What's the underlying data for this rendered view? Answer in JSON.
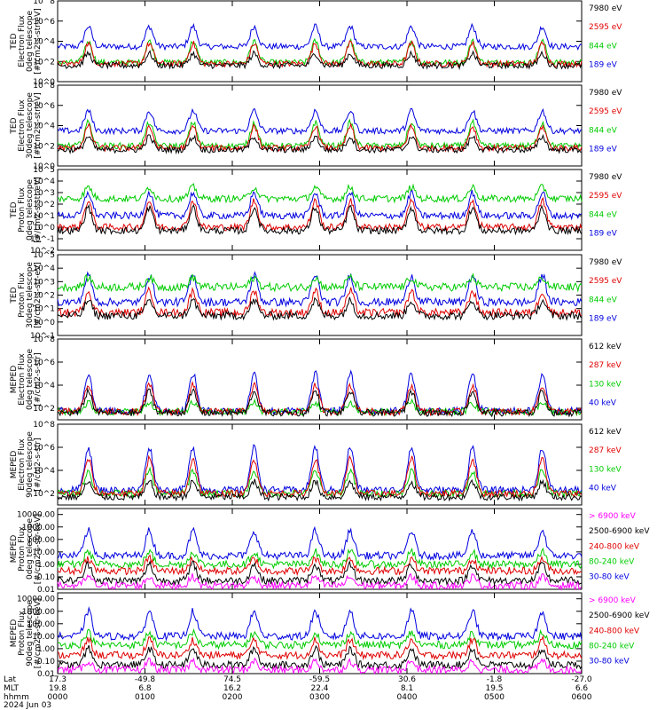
{
  "chart_data": [
    {
      "type": "line",
      "ylabel": [
        "TED",
        "Electron Flux",
        "0deg telescope",
        "[#/cm2-s-str-eV]"
      ],
      "yscale": "log",
      "ylim": [
        1,
        100000000
      ],
      "yticks": [
        {
          "v": 1,
          "label": "10^0"
        },
        {
          "v": 100,
          "label": "10^2"
        },
        {
          "v": 10000,
          "label": "10^4"
        },
        {
          "v": 1000000,
          "label": "10^6"
        },
        {
          "v": 100000000,
          "label": "10^8"
        }
      ],
      "series": [
        {
          "name": "7980 eV",
          "color": "#000000",
          "base": 40,
          "peak": 600
        },
        {
          "name": "2595 eV",
          "color": "#e00000",
          "base": 60,
          "peak": 6000
        },
        {
          "name": "844 eV",
          "color": "#00cc00",
          "base": 80,
          "peak": 10000
        },
        {
          "name": "189 eV",
          "color": "#0000e0",
          "base": 3000,
          "peak": 300000
        }
      ]
    },
    {
      "type": "line",
      "ylabel": [
        "TED",
        "Electron Flux",
        "30deg telescope",
        "[#/cm2-s-str-eV]"
      ],
      "yscale": "log",
      "ylim": [
        1,
        100000000
      ],
      "yticks": [
        {
          "v": 1,
          "label": "10^0"
        },
        {
          "v": 100,
          "label": "10^2"
        },
        {
          "v": 10000,
          "label": "10^4"
        },
        {
          "v": 1000000,
          "label": "10^6"
        },
        {
          "v": 100000000,
          "label": "10^8"
        }
      ],
      "series": [
        {
          "name": "7980 eV",
          "color": "#000000",
          "base": 40,
          "peak": 800
        },
        {
          "name": "2595 eV",
          "color": "#e00000",
          "base": 60,
          "peak": 8000
        },
        {
          "name": "844 eV",
          "color": "#00cc00",
          "base": 100,
          "peak": 20000
        },
        {
          "name": "189 eV",
          "color": "#0000e0",
          "base": 3000,
          "peak": 300000
        }
      ]
    },
    {
      "type": "line",
      "ylabel": [
        "TED",
        "Proton Flux",
        "0deg telescope",
        "[#/cm2-s-str-eV]"
      ],
      "yscale": "log",
      "ylim": [
        0.01,
        100000
      ],
      "yticks": [
        {
          "v": 0.01,
          "label": "10^-2"
        },
        {
          "v": 0.1,
          "label": "10^-1"
        },
        {
          "v": 1,
          "label": "10^0"
        },
        {
          "v": 10,
          "label": "10^1"
        },
        {
          "v": 100,
          "label": "10^2"
        },
        {
          "v": 1000,
          "label": "10^3"
        },
        {
          "v": 10000,
          "label": "10^4"
        },
        {
          "v": 100000,
          "label": "10^5"
        }
      ],
      "series": [
        {
          "name": "7980 eV",
          "color": "#000000",
          "base": 0.5,
          "peak": 50
        },
        {
          "name": "2595 eV",
          "color": "#e00000",
          "base": 1,
          "peak": 200
        },
        {
          "name": "844 eV",
          "color": "#00cc00",
          "base": 300,
          "peak": 3000
        },
        {
          "name": "189 eV",
          "color": "#0000e0",
          "base": 10,
          "peak": 1000
        }
      ]
    },
    {
      "type": "line",
      "ylabel": [
        "TED",
        "Proton Flux",
        "30deg telescope",
        "[#/cm2-s-str-eV]"
      ],
      "yscale": "log",
      "ylim": [
        0.1,
        100000
      ],
      "yticks": [
        {
          "v": 0.1,
          "label": "10^-1"
        },
        {
          "v": 1,
          "label": "10^0"
        },
        {
          "v": 10,
          "label": "10^1"
        },
        {
          "v": 100,
          "label": "10^2"
        },
        {
          "v": 1000,
          "label": "10^3"
        },
        {
          "v": 10000,
          "label": "10^4"
        },
        {
          "v": 100000,
          "label": "10^5"
        }
      ],
      "series": [
        {
          "name": "7980 eV",
          "color": "#000000",
          "base": 3,
          "peak": 40
        },
        {
          "name": "2595 eV",
          "color": "#e00000",
          "base": 5,
          "peak": 200
        },
        {
          "name": "844 eV",
          "color": "#00cc00",
          "base": 400,
          "peak": 2000
        },
        {
          "name": "189 eV",
          "color": "#0000e0",
          "base": 30,
          "peak": 3000
        }
      ]
    },
    {
      "type": "line",
      "ylabel": [
        "MEPED",
        "Electron Flux",
        "0deg telescope",
        "[#/cm2-s-str]"
      ],
      "yscale": "log",
      "ylim": [
        10,
        100000000
      ],
      "yticks": [
        {
          "v": 100,
          "label": "10^2"
        },
        {
          "v": 10000,
          "label": "10^4"
        },
        {
          "v": 1000000,
          "label": "10^6"
        },
        {
          "v": 100000000,
          "label": "10^8"
        }
      ],
      "series": [
        {
          "name": "612 keV",
          "color": "#000000",
          "base": 40,
          "peak": 3000
        },
        {
          "name": "287 keV",
          "color": "#e00000",
          "base": 50,
          "peak": 10000
        },
        {
          "name": "130 keV",
          "color": "#00cc00",
          "base": 50,
          "peak": 300
        },
        {
          "name": "40 keV",
          "color": "#0000e0",
          "base": 60,
          "peak": 100000
        }
      ]
    },
    {
      "type": "line",
      "ylabel": [
        "MEPED",
        "Electron Flux",
        "90deg telescope",
        "[#/cm2-s-str]"
      ],
      "yscale": "log",
      "ylim": [
        10,
        100000000
      ],
      "yticks": [
        {
          "v": 100,
          "label": "10^2"
        },
        {
          "v": 10000,
          "label": "10^4"
        },
        {
          "v": 1000000,
          "label": "10^6"
        },
        {
          "v": 100000000,
          "label": "10^8"
        }
      ],
      "series": [
        {
          "name": "612 keV",
          "color": "#000000",
          "base": 50,
          "peak": 1000
        },
        {
          "name": "287 keV",
          "color": "#e00000",
          "base": 100,
          "peak": 100000
        },
        {
          "name": "130 keV",
          "color": "#00cc00",
          "base": 100,
          "peak": 10000
        },
        {
          "name": "40 keV",
          "color": "#0000e0",
          "base": 200,
          "peak": 1000000
        }
      ]
    },
    {
      "type": "line",
      "ylabel": [
        "MEPED",
        "Proton Flux",
        "0deg telescope",
        "[#/cm2-s-str-keV]"
      ],
      "yscale": "log",
      "ylim": [
        0.01,
        30000
      ],
      "yticks": [
        {
          "v": 0.01,
          "label": "0.01"
        },
        {
          "v": 0.1,
          "label": "0.10"
        },
        {
          "v": 1,
          "label": "1.00"
        },
        {
          "v": 10,
          "label": "10.00"
        },
        {
          "v": 100,
          "label": "100.00"
        },
        {
          "v": 1000,
          "label": "1000.00"
        },
        {
          "v": 10000,
          "label": "10000.00"
        }
      ],
      "series": [
        {
          "name": "> 6900 keV",
          "color": "#ff00ff",
          "base": 0.02,
          "peak": 0.1
        },
        {
          "name": "2500-6900 keV",
          "color": "#000000",
          "base": 0.05,
          "peak": 1
        },
        {
          "name": "240-800 keV",
          "color": "#e00000",
          "base": 0.3,
          "peak": 3
        },
        {
          "name": "80-240 keV",
          "color": "#00cc00",
          "base": 1,
          "peak": 10
        },
        {
          "name": "30-80 keV",
          "color": "#0000e0",
          "base": 5,
          "peak": 500
        }
      ]
    },
    {
      "type": "line",
      "ylabel": [
        "MEPED",
        "Proton Flux",
        "90deg telescope",
        "[#/cm2-s-str-keV]"
      ],
      "yscale": "log",
      "ylim": [
        0.01,
        30000
      ],
      "yticks": [
        {
          "v": 0.01,
          "label": "0.01"
        },
        {
          "v": 0.1,
          "label": "0.10"
        },
        {
          "v": 1,
          "label": "1.00"
        },
        {
          "v": 10,
          "label": "10.00"
        },
        {
          "v": 100,
          "label": "100.00"
        },
        {
          "v": 1000,
          "label": "1000.00"
        },
        {
          "v": 10000,
          "label": "10000.00"
        }
      ],
      "series": [
        {
          "name": "> 6900 keV",
          "color": "#ff00ff",
          "base": 0.02,
          "peak": 0.1
        },
        {
          "name": "2500-6900 keV",
          "color": "#000000",
          "base": 0.05,
          "peak": 1
        },
        {
          "name": "240-800 keV",
          "color": "#e00000",
          "base": 0.3,
          "peak": 5
        },
        {
          "name": "80-240 keV",
          "color": "#00cc00",
          "base": 2,
          "peak": 20
        },
        {
          "name": "30-80 keV",
          "color": "#0000e0",
          "base": 10,
          "peak": 1000
        }
      ]
    }
  ],
  "time_axis": {
    "row_labels": [
      "Lat",
      "MLT",
      "hhmm",
      "2024 Jun 03"
    ],
    "ticks": [
      {
        "hours": 0,
        "lat": "17.3",
        "mlt": "19.8",
        "hhmm": "0000"
      },
      {
        "hours": 1,
        "lat": "-49.8",
        "mlt": "6.8",
        "hhmm": "0100"
      },
      {
        "hours": 2,
        "lat": "74.5",
        "mlt": "16.2",
        "hhmm": "0200"
      },
      {
        "hours": 3,
        "lat": "-59.5",
        "mlt": "22.4",
        "hhmm": "0300"
      },
      {
        "hours": 4,
        "lat": "30.6",
        "mlt": "8.1",
        "hhmm": "0400"
      },
      {
        "hours": 5,
        "lat": "-1.8",
        "mlt": "19.5",
        "hhmm": "0500"
      },
      {
        "hours": 6,
        "lat": "-27.0",
        "mlt": "6.6",
        "hhmm": "0600"
      }
    ]
  }
}
